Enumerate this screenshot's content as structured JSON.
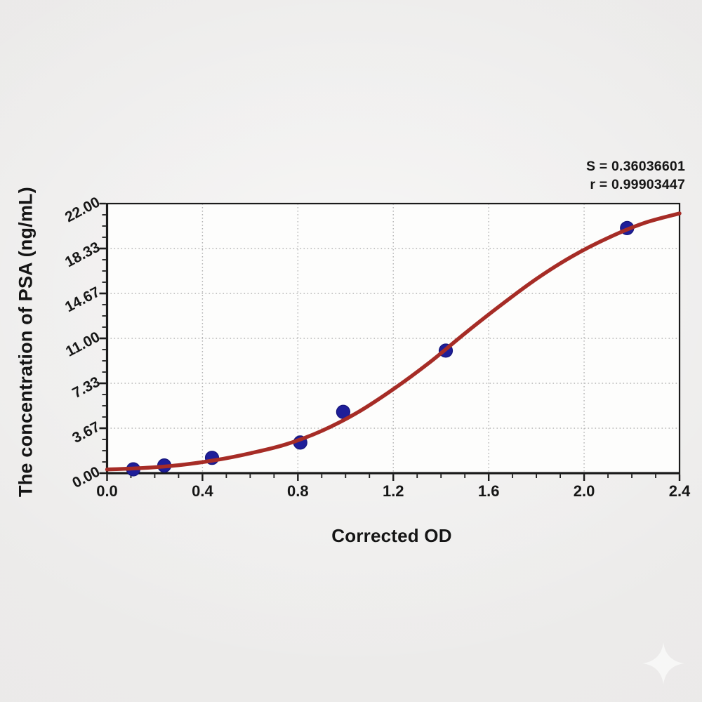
{
  "stats": {
    "line1": "S = 0.36036601",
    "line2": "r = 0.99903447"
  },
  "chart_data": {
    "type": "scatter",
    "title": "",
    "xlabel": "Corrected OD",
    "ylabel": "The concentration of PSA (ng/mL)",
    "xlim": [
      0.0,
      2.4
    ],
    "ylim": [
      0.0,
      22.0
    ],
    "x_major_ticks": [
      0.0,
      0.4,
      0.8,
      1.2,
      1.6,
      2.0,
      2.4
    ],
    "x_tick_labels": [
      "0.0",
      "0.4",
      "0.8",
      "1.2",
      "1.6",
      "2.0",
      "2.4"
    ],
    "x_minor_step": 0.1,
    "y_major_ticks": [
      0.0,
      3.6667,
      7.3333,
      11.0,
      14.6667,
      18.3333,
      22.0
    ],
    "y_tick_labels": [
      "0.00",
      "3.67",
      "7.33",
      "11.00",
      "14.67",
      "18.33",
      "22.00"
    ],
    "y_minor_step": 0.9167,
    "grid": "dotted gray lines at major ticks",
    "legend": "none",
    "series": [
      {
        "name": "standard-points",
        "kind": "scatter",
        "color": "#1e1e99",
        "points": [
          [
            0.11,
            0.3125
          ],
          [
            0.24,
            0.625
          ],
          [
            0.44,
            1.25
          ],
          [
            0.81,
            2.5
          ],
          [
            0.99,
            5.0
          ],
          [
            1.42,
            10.0
          ],
          [
            2.18,
            20.0
          ]
        ]
      },
      {
        "name": "fit-curve",
        "kind": "line",
        "color": "#a62c26",
        "points": [
          [
            0.0,
            0.3
          ],
          [
            0.15,
            0.42
          ],
          [
            0.3,
            0.65
          ],
          [
            0.45,
            1.05
          ],
          [
            0.6,
            1.62
          ],
          [
            0.75,
            2.35
          ],
          [
            0.9,
            3.45
          ],
          [
            1.05,
            4.95
          ],
          [
            1.2,
            6.85
          ],
          [
            1.35,
            9.0
          ],
          [
            1.5,
            11.4
          ],
          [
            1.65,
            13.7
          ],
          [
            1.8,
            15.85
          ],
          [
            1.95,
            17.7
          ],
          [
            2.1,
            19.2
          ],
          [
            2.25,
            20.4
          ],
          [
            2.4,
            21.2
          ]
        ]
      }
    ],
    "annotations": {
      "S": "0.36036601",
      "r": "0.99903447"
    }
  },
  "colors": {
    "curve": "#a62c26",
    "marker": "#1e1e99",
    "marker_edge": "#15157a",
    "axis": "#1b1b1b",
    "grid": "#b4b4b4",
    "plot_background": "#fdfdfc",
    "page_background": "#ebeae9",
    "text": "#161616"
  },
  "watermark": {
    "icon": "sparkle-icon"
  }
}
